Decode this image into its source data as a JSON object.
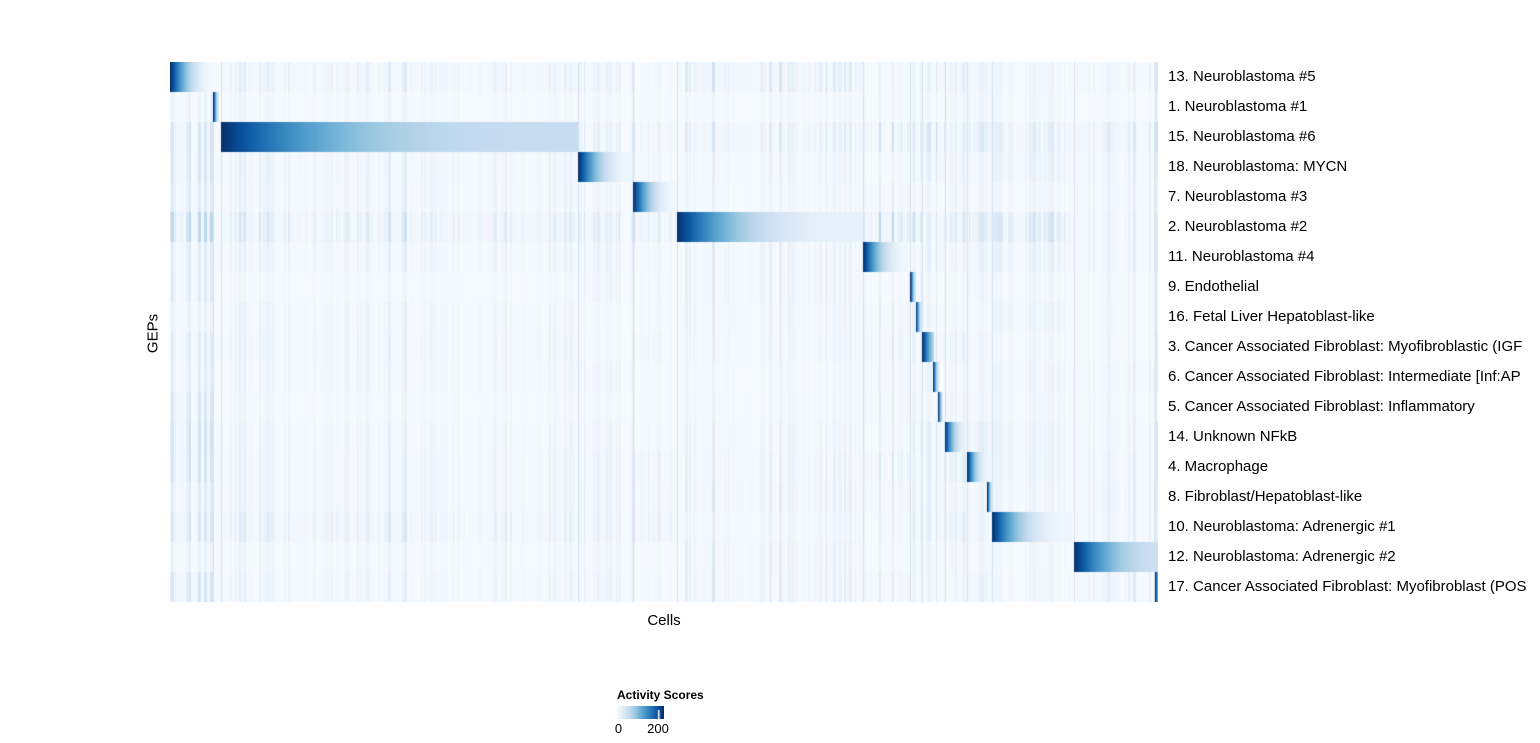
{
  "chart_data": {
    "type": "heatmap",
    "title": "",
    "xlabel": "Cells",
    "ylabel": "GEPs",
    "vmin": 0,
    "vmax": 230,
    "colormap": "Blues",
    "colormap_stops": [
      "#f7fbff",
      "#deebf7",
      "#c6dbef",
      "#9ecae1",
      "#6baed6",
      "#4292c6",
      "#2171b5",
      "#08519c",
      "#08306b"
    ],
    "grid": false,
    "legend": {
      "title": "Activity Scores",
      "position": "bottom",
      "tick_labels": [
        "0",
        "200"
      ],
      "tick_values": [
        0,
        200
      ]
    },
    "sections": [
      0,
      0.044,
      0.052,
      0.413,
      0.469,
      0.513,
      0.701,
      0.749,
      0.761,
      0.784,
      0.807,
      0.832,
      0.915,
      0.997
    ],
    "section_weights": [
      1.2,
      0.5,
      0.85,
      0.8,
      0.8,
      1.2,
      1.0,
      1.1,
      1.0,
      1.0,
      1.0,
      0.9,
      0.9,
      0.9
    ],
    "rows": [
      {
        "label": "13. Neuroblastoma #5",
        "noise": 0.7,
        "block": {
          "start": 0.0,
          "end": 0.0445,
          "peak": 230,
          "tail": 4,
          "gamma": 2.0
        }
      },
      {
        "label": "1. Neuroblastoma #1",
        "noise": 0.35,
        "block": {
          "start": 0.044,
          "end": 0.0496,
          "peak": 230,
          "tail": 30,
          "gamma": 1.5
        }
      },
      {
        "label": "15. Neuroblastoma #6",
        "noise": 1.0,
        "block": {
          "start": 0.0516,
          "end": 0.413,
          "peak": 230,
          "tail": 55,
          "gamma": 3.0
        }
      },
      {
        "label": "18. Neuroblastoma: MYCN",
        "noise": 0.6,
        "block": {
          "start": 0.413,
          "end": 0.4676,
          "peak": 230,
          "tail": 8,
          "gamma": 2.2
        }
      },
      {
        "label": "7. Neuroblastoma #3",
        "noise": 0.5,
        "block": {
          "start": 0.4686,
          "end": 0.512,
          "peak": 230,
          "tail": 8,
          "gamma": 2.2
        }
      },
      {
        "label": "2. Neuroblastoma #2",
        "noise": 1.1,
        "block": {
          "start": 0.513,
          "end": 0.7014,
          "peak": 230,
          "tail": 18,
          "gamma": 2.8
        }
      },
      {
        "label": "11. Neuroblastoma #4",
        "noise": 0.6,
        "block": {
          "start": 0.7014,
          "end": 0.746,
          "peak": 230,
          "tail": 8,
          "gamma": 2.2
        }
      },
      {
        "label": "9. Endothelial",
        "noise": 0.45,
        "block": {
          "start": 0.749,
          "end": 0.755,
          "peak": 230,
          "tail": 40,
          "gamma": 1.5
        }
      },
      {
        "label": "16. Fetal Liver Hepatoblast-like",
        "noise": 0.45,
        "block": {
          "start": 0.755,
          "end": 0.761,
          "peak": 210,
          "tail": 35,
          "gamma": 1.5
        }
      },
      {
        "label": "3. Cancer Associated Fibroblast: Myofibroblastic (IGF",
        "noise": 0.5,
        "block": {
          "start": 0.761,
          "end": 0.7733,
          "peak": 230,
          "tail": 70,
          "gamma": 1.2
        }
      },
      {
        "label": "6. Cancer Associated Fibroblast: Intermediate [Inf:AP",
        "noise": 0.45,
        "block": {
          "start": 0.7723,
          "end": 0.7783,
          "peak": 220,
          "tail": 35,
          "gamma": 1.5
        }
      },
      {
        "label": "5. Cancer Associated Fibroblast: Inflammatory",
        "noise": 0.5,
        "block": {
          "start": 0.7773,
          "end": 0.7824,
          "peak": 220,
          "tail": 35,
          "gamma": 1.5
        }
      },
      {
        "label": "14. Unknown NFkB",
        "noise": 0.7,
        "block": {
          "start": 0.7843,
          "end": 0.8057,
          "peak": 220,
          "tail": 15,
          "gamma": 2.0
        }
      },
      {
        "label": "4. Macrophage",
        "noise": 0.8,
        "block": {
          "start": 0.8067,
          "end": 0.83,
          "peak": 230,
          "tail": 12,
          "gamma": 2.4
        }
      },
      {
        "label": "8. Fibroblast/Hepatoblast-like",
        "noise": 0.6,
        "block": {
          "start": 0.827,
          "end": 0.832,
          "peak": 230,
          "tail": 45,
          "gamma": 1.5
        }
      },
      {
        "label": "10. Neuroblastoma: Adrenergic #1",
        "noise": 0.7,
        "block": {
          "start": 0.832,
          "end": 0.913,
          "peak": 230,
          "tail": 10,
          "gamma": 2.6
        }
      },
      {
        "label": "12. Neuroblastoma: Adrenergic #2",
        "noise": 0.5,
        "block": {
          "start": 0.915,
          "end": 1.0,
          "peak": 230,
          "tail": 50,
          "gamma": 2.0
        }
      },
      {
        "label": "17. Cancer Associated Fibroblast: Myofibroblast (POS",
        "noise": 0.65,
        "block": {
          "start": 0.997,
          "end": 1.0,
          "peak": 230,
          "tail": 120,
          "gamma": 1.0
        }
      }
    ]
  }
}
